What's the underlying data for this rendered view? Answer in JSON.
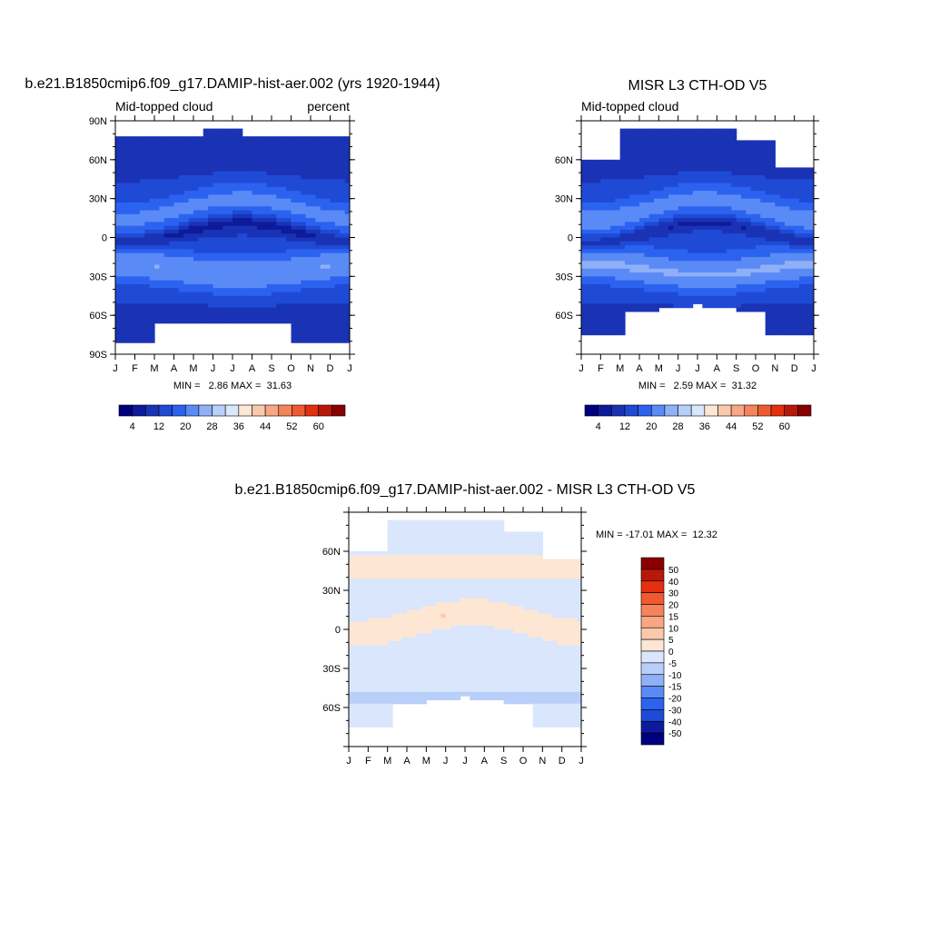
{
  "months": [
    "J",
    "F",
    "M",
    "A",
    "M",
    "J",
    "J",
    "A",
    "S",
    "O",
    "N",
    "D",
    "J"
  ],
  "lat_ticks": [
    {
      "value": 90,
      "label": "90N"
    },
    {
      "value": 60,
      "label": "60N"
    },
    {
      "value": 30,
      "label": "30N"
    },
    {
      "value": 0,
      "label": "0"
    },
    {
      "value": -30,
      "label": "30S"
    },
    {
      "value": -60,
      "label": "60S"
    },
    {
      "value": -90,
      "label": "90S"
    }
  ],
  "colors": {
    "abs": [
      "#00007f",
      "#0d1a9c",
      "#1a33b5",
      "#1f4ad6",
      "#2b63f0",
      "#5a8af5",
      "#8fb0f7",
      "#b8cff9",
      "#d9e6fc",
      "#fde6d3",
      "#fbc8ac",
      "#f8a683",
      "#f5845d",
      "#ef5a30",
      "#e3300f",
      "#b81809",
      "#8a0000"
    ],
    "diff": [
      "#00007f",
      "#0d1a9c",
      "#1f4ad6",
      "#2b63f0",
      "#5a8af5",
      "#8fb0f7",
      "#b8cff9",
      "#d9e6fc",
      "#fde6d3",
      "#fbc8ac",
      "#f8a683",
      "#f5845d",
      "#ef5a30",
      "#e3300f",
      "#b81809",
      "#8a0000"
    ]
  },
  "chart_data": [
    {
      "type": "heatmap",
      "title": "b.e21.B1850cmip6.f09_g17.DAMIP-hist-aer.002 (yrs 1920-1944)",
      "subtitle_left": "Mid-topped cloud",
      "subtitle_right": "percent",
      "x_labels": [
        "J",
        "F",
        "M",
        "A",
        "M",
        "J",
        "J",
        "A",
        "S",
        "O",
        "N",
        "D",
        "J"
      ],
      "ylim": [
        -90,
        90
      ],
      "stats": "MIN =   2.86 MAX =  31.63",
      "min": 2.86,
      "max": 31.63,
      "colorbar_ticks": [
        "4",
        "12",
        "20",
        "28",
        "36",
        "44",
        "52",
        "60"
      ],
      "colorbar_levels": [
        0,
        4,
        8,
        12,
        16,
        20,
        24,
        28,
        32,
        36,
        40,
        44,
        48,
        52,
        56,
        60,
        64
      ]
    },
    {
      "type": "heatmap",
      "title": "MISR L3 CTH-OD V5",
      "subtitle_left": "Mid-topped cloud",
      "x_labels": [
        "J",
        "F",
        "M",
        "A",
        "M",
        "J",
        "J",
        "A",
        "S",
        "O",
        "N",
        "D",
        "J"
      ],
      "ylim": [
        -90,
        90
      ],
      "stats": "MIN =   2.59 MAX =  31.32",
      "min": 2.59,
      "max": 31.32,
      "colorbar_ticks": [
        "4",
        "12",
        "20",
        "28",
        "36",
        "44",
        "52",
        "60"
      ],
      "colorbar_levels": [
        0,
        4,
        8,
        12,
        16,
        20,
        24,
        28,
        32,
        36,
        40,
        44,
        48,
        52,
        56,
        60,
        64
      ]
    },
    {
      "type": "heatmap",
      "title": "b.e21.B1850cmip6.f09_g17.DAMIP-hist-aer.002 - MISR L3 CTH-OD V5",
      "x_labels": [
        "J",
        "F",
        "M",
        "A",
        "M",
        "J",
        "J",
        "A",
        "S",
        "O",
        "N",
        "D",
        "J"
      ],
      "ylim": [
        -90,
        90
      ],
      "stats": "MIN = -17.01 MAX =  12.32",
      "min": -17.01,
      "max": 12.32,
      "colorbar_ticks": [
        "50",
        "40",
        "30",
        "20",
        "15",
        "10",
        "5",
        "0",
        "-5",
        "-10",
        "-15",
        "-20",
        "-30",
        "-40",
        "-50"
      ],
      "colorbar_levels": [
        -60,
        -50,
        -40,
        -30,
        -20,
        -15,
        -10,
        -5,
        0,
        5,
        10,
        15,
        20,
        30,
        40,
        50,
        60
      ]
    }
  ]
}
